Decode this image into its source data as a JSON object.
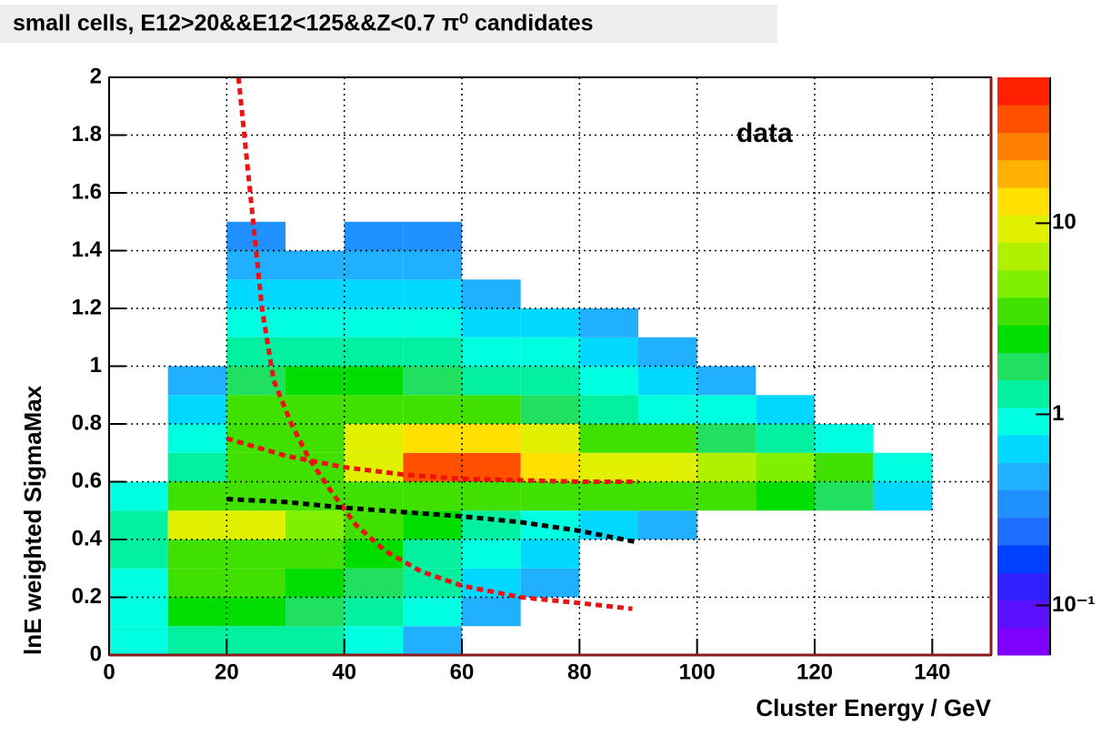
{
  "chart_data": {
    "type": "heatmap",
    "title": "small cells, E12>20&&E12<125&&Z<0.7 π⁰ candidates",
    "annotation": "data",
    "x_label": "Cluster Energy / GeV",
    "y_label": "lnE weighted SigmaMax",
    "xlim": [
      0,
      150
    ],
    "ylim": [
      0,
      2
    ],
    "xticks": [
      0,
      20,
      40,
      60,
      80,
      100,
      120,
      140
    ],
    "yticks": [
      0,
      0.2,
      0.4,
      0.6,
      0.8,
      1,
      1.2,
      1.4,
      1.6,
      1.8,
      2
    ],
    "grid": true,
    "xbins": [
      0,
      10,
      20,
      30,
      40,
      50,
      60,
      70,
      80,
      90,
      100,
      110,
      120,
      130,
      140,
      150
    ],
    "ybins": [
      0,
      0.1,
      0.2,
      0.3,
      0.4,
      0.5,
      0.6,
      0.7,
      0.8,
      0.9,
      1,
      1.1,
      1.2,
      1.3,
      1.4,
      1.5
    ],
    "values": [
      [
        0.8,
        1.5,
        1.5,
        1.2,
        0.8,
        0.5,
        null,
        null,
        null,
        null,
        null,
        null,
        null,
        null,
        null
      ],
      [
        1,
        2.5,
        2.5,
        2,
        1.5,
        0.8,
        0.5,
        null,
        null,
        null,
        null,
        null,
        null,
        null,
        null
      ],
      [
        1,
        3,
        3,
        2.5,
        2,
        1.2,
        0.7,
        0.5,
        null,
        null,
        null,
        null,
        null,
        null,
        null
      ],
      [
        1.2,
        4,
        4,
        3,
        2.5,
        1.5,
        1,
        0.6,
        null,
        null,
        null,
        null,
        null,
        null,
        null
      ],
      [
        1.5,
        8,
        8,
        5,
        4,
        2.5,
        1.5,
        1,
        0.6,
        0.5,
        null,
        null,
        null,
        null,
        null
      ],
      [
        0.8,
        4,
        4,
        3.5,
        4,
        4,
        4,
        4,
        4,
        3,
        3,
        2.5,
        2,
        0.6,
        null
      ],
      [
        null,
        1.5,
        3,
        4,
        10,
        30,
        30,
        15,
        10,
        8,
        6,
        5,
        4,
        0.8,
        null
      ],
      [
        null,
        1,
        4,
        4,
        8,
        15,
        12,
        8,
        4,
        3,
        2,
        1.5,
        1,
        null,
        null
      ],
      [
        null,
        0.7,
        3,
        3,
        4,
        4,
        3,
        2,
        1.5,
        1,
        0.8,
        0.6,
        null,
        null,
        null
      ],
      [
        null,
        0.5,
        2,
        2.5,
        2.5,
        2,
        1.5,
        1.2,
        0.8,
        0.6,
        0.5,
        null,
        null,
        null,
        null
      ],
      [
        null,
        null,
        1.2,
        1.5,
        1.5,
        1.2,
        1,
        0.8,
        0.6,
        0.5,
        null,
        null,
        null,
        null,
        null
      ],
      [
        null,
        null,
        0.8,
        1,
        1,
        0.8,
        0.7,
        0.6,
        0.5,
        null,
        null,
        null,
        null,
        null,
        null
      ],
      [
        null,
        null,
        0.6,
        0.7,
        0.7,
        0.6,
        0.5,
        null,
        null,
        null,
        null,
        null,
        null,
        null,
        null
      ],
      [
        null,
        null,
        0.5,
        0.5,
        0.5,
        0.5,
        null,
        null,
        null,
        null,
        null,
        null,
        null,
        null,
        null
      ],
      [
        null,
        null,
        0.3,
        null,
        0.3,
        0.3,
        null,
        null,
        null,
        null,
        null,
        null,
        null,
        null,
        null
      ]
    ],
    "zlim": [
      0.055,
      58
    ],
    "zlog": true,
    "zticks": [
      {
        "value": 0.1,
        "label": "10⁻¹"
      },
      1,
      10
    ],
    "palette": [
      "#7f00ff",
      "#5a10ff",
      "#3020ff",
      "#0040ff",
      "#1f6fff",
      "#2090ff",
      "#20b0ff",
      "#00d8ff",
      "#00ffe0",
      "#00f0a0",
      "#20e060",
      "#00dd00",
      "#40e000",
      "#80f000",
      "#b0f000",
      "#e0f000",
      "#ffe000",
      "#ffb000",
      "#ff8000",
      "#ff5000",
      "#ff2000"
    ],
    "curves": [
      {
        "color": "#ee1111",
        "x": [
          22,
          24,
          26,
          28,
          31,
          34,
          38,
          42,
          47,
          53,
          60,
          70,
          80,
          89
        ],
        "values": [
          2.0,
          1.6,
          1.2,
          0.95,
          0.8,
          0.68,
          0.56,
          0.45,
          0.36,
          0.29,
          0.24,
          0.2,
          0.18,
          0.16
        ]
      },
      {
        "color": "#ee1111",
        "x": [
          20,
          30,
          40,
          50,
          60,
          70,
          80,
          90
        ],
        "values": [
          0.75,
          0.69,
          0.65,
          0.625,
          0.61,
          0.605,
          0.6,
          0.6
        ]
      },
      {
        "color": "#000000",
        "x": [
          20,
          30,
          40,
          50,
          60,
          70,
          80,
          90
        ],
        "values": [
          0.54,
          0.53,
          0.51,
          0.495,
          0.48,
          0.46,
          0.43,
          0.39
        ]
      }
    ]
  }
}
